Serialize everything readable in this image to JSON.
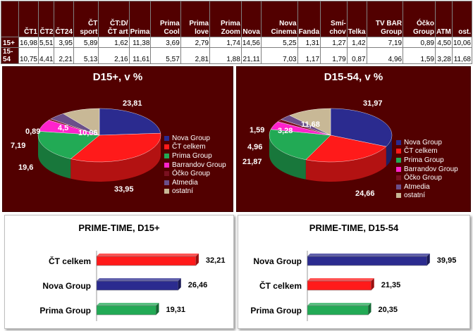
{
  "table": {
    "columns": [
      "ČT1",
      "ČT2",
      "ČT24",
      "ČT sport",
      "ČT:D/ ČT art",
      "Prima",
      "Prima Cool",
      "Prima love",
      "Prima Zoom",
      "Nova",
      "Nova Cinema",
      "Fanda",
      "Smí- chov",
      "Telka",
      "TV BAR Group",
      "Óčko Group",
      "ATM",
      "ost."
    ],
    "rows": [
      {
        "label": "15+",
        "values": [
          "16,98",
          "5,51",
          "3,95",
          "5,89",
          "1,62",
          "11,38",
          "3,69",
          "2,79",
          "1,74",
          "14,56",
          "5,25",
          "1,31",
          "1,27",
          "1,42",
          "7,19",
          "0,89",
          "4,50",
          "10,06"
        ]
      },
      {
        "label": "15-54",
        "values": [
          "10,75",
          "4,41",
          "2,21",
          "5,13",
          "2,16",
          "11,61",
          "5,57",
          "2,81",
          "1,88",
          "21,11",
          "7,03",
          "1,17",
          "1,79",
          "0,87",
          "4,96",
          "1,59",
          "3,28",
          "11,68"
        ]
      }
    ]
  },
  "legend": [
    "Nova Group",
    "ČT celkem",
    "Prima Group",
    "Barrandov Group",
    "Óčko Group",
    "Atmedia",
    "ostatní"
  ],
  "colors": [
    "#2b2b8f",
    "#ff1a1a",
    "#22aa55",
    "#ff22cc",
    "#7a1020",
    "#6b4f8a",
    "#c8b896"
  ],
  "bar_colors": {
    "Nova Group": "#2b2b8f",
    "ČT celkem": "#ff1a1a",
    "Prima Group": "#22aa55"
  },
  "chart_data": [
    {
      "type": "pie",
      "title": "D15+, v %",
      "categories": [
        "Nova Group",
        "ČT celkem",
        "Prima Group",
        "Barrandov Group",
        "Óčko Group",
        "Atmedia",
        "ostatní"
      ],
      "values": [
        23.81,
        33.95,
        19.6,
        7.19,
        0.89,
        4.5,
        10.06
      ],
      "labels": [
        "23,81",
        "33,95",
        "19,6",
        "7,19",
        "0,89",
        "4,5",
        "10,06"
      ],
      "legend": "right"
    },
    {
      "type": "pie",
      "title": "D15-54, v %",
      "categories": [
        "Nova Group",
        "ČT celkem",
        "Prima Group",
        "Barrandov Group",
        "Óčko Group",
        "Atmedia",
        "ostatní"
      ],
      "values": [
        31.97,
        24.66,
        21.87,
        4.96,
        1.59,
        3.28,
        11.68
      ],
      "labels": [
        "31,97",
        "24,66",
        "21,87",
        "4,96",
        "1,59",
        "3,28",
        "11,68"
      ],
      "legend": "right"
    },
    {
      "type": "bar",
      "orientation": "horizontal",
      "title": "PRIME-TIME, D15+",
      "categories": [
        "ČT celkem",
        "Nova Group",
        "Prima Group"
      ],
      "values": [
        32.21,
        26.46,
        19.31
      ],
      "labels": [
        "32,21",
        "26,46",
        "19,31"
      ],
      "xlim": [
        0,
        40
      ]
    },
    {
      "type": "bar",
      "orientation": "horizontal",
      "title": "PRIME-TIME, D15-54",
      "categories": [
        "Nova Group",
        "ČT celkem",
        "Prima Group"
      ],
      "values": [
        39.95,
        21.35,
        20.35
      ],
      "labels": [
        "39,95",
        "21,35",
        "20,35"
      ],
      "xlim": [
        0,
        40
      ]
    }
  ]
}
